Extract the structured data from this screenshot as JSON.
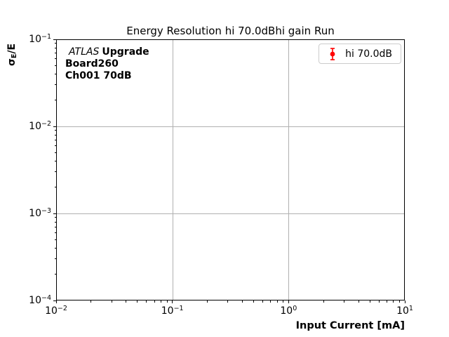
{
  "figure": {
    "title": "Energy Resolution hi 70.0dBhi gain Run",
    "x_axis_label": "Input Current [mA]",
    "y_axis_label": {
      "symbol": "σ",
      "subscript": "E",
      "suffix": "/E"
    },
    "annotation": {
      "line1_italic": "ATLAS",
      "line1_bold": "Upgrade",
      "line2": "Board260",
      "line3": "Ch001 70dB"
    },
    "legend": {
      "entries": [
        {
          "label": "hi 70.0dB",
          "color": "#ff0000",
          "marker": "errorbar-circle"
        }
      ]
    }
  },
  "chart_data": {
    "type": "scatter",
    "title": "Energy Resolution hi 70.0dBhi gain Run",
    "xlabel": "Input Current [mA]",
    "ylabel": "sigma_E/E",
    "x_scale": "log",
    "y_scale": "log",
    "xlim": [
      0.01,
      10
    ],
    "ylim": [
      0.0001,
      0.1
    ],
    "x_tick_exponents": [
      -2,
      -1,
      0,
      1
    ],
    "y_tick_exponents": [
      -1,
      -2,
      -3,
      -4
    ],
    "minor_ticks_per_decade": [
      2,
      3,
      4,
      5,
      6,
      7,
      8,
      9
    ],
    "grid": true,
    "grid_color": "#b0b0b0",
    "axis_color": "#000000",
    "legend_position": "upper-right",
    "series": [
      {
        "name": "hi 70.0dB",
        "color": "#ff0000",
        "marker": "circle-with-errorbars",
        "x": [],
        "y": []
      }
    ]
  }
}
